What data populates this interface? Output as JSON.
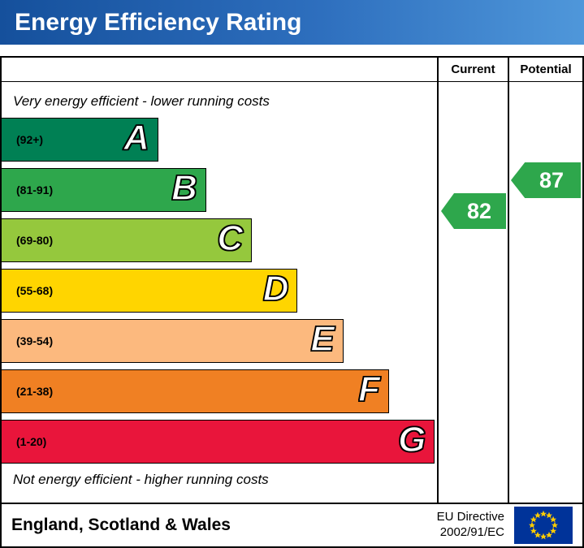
{
  "banner": {
    "title": "Energy Efficiency Rating"
  },
  "table": {
    "current_header": "Current",
    "potential_header": "Potential",
    "top_note": "Very energy efficient - lower running costs",
    "bottom_note": "Not energy efficient - higher running costs"
  },
  "bands": [
    {
      "letter": "A",
      "range": "(92+)",
      "color": "#008054",
      "width_pct": 36
    },
    {
      "letter": "B",
      "range": "(81-91)",
      "color": "#2ea74c",
      "width_pct": 47
    },
    {
      "letter": "C",
      "range": "(69-80)",
      "color": "#95c83d",
      "width_pct": 57.5
    },
    {
      "letter": "D",
      "range": "(55-68)",
      "color": "#ffd500",
      "width_pct": 68
    },
    {
      "letter": "E",
      "range": "(39-54)",
      "color": "#fcb97e",
      "width_pct": 78.5
    },
    {
      "letter": "F",
      "range": "(21-38)",
      "color": "#f08023",
      "width_pct": 89
    },
    {
      "letter": "G",
      "range": "(1-20)",
      "color": "#e9153b",
      "width_pct": 99.5
    }
  ],
  "ratings": {
    "current": {
      "value": "82",
      "band": "B",
      "color": "#2ea74c"
    },
    "potential": {
      "value": "87",
      "band": "B",
      "color": "#2ea74c"
    }
  },
  "footer": {
    "region": "England, Scotland & Wales",
    "directive": [
      "EU Directive",
      "2002/91/EC"
    ],
    "flag_blue": "#003399",
    "flag_star": "#ffcc00"
  },
  "chart_data": {
    "type": "bar",
    "title": "Energy Efficiency Rating",
    "categories": [
      "A (92+)",
      "B (81-91)",
      "C (69-80)",
      "D (55-68)",
      "E (39-54)",
      "F (21-38)",
      "G (1-20)"
    ],
    "values": [
      36,
      47,
      57.5,
      68,
      78.5,
      89,
      99.5
    ],
    "band_colors": [
      "#008054",
      "#2ea74c",
      "#95c83d",
      "#ffd500",
      "#fcb97e",
      "#f08023",
      "#e9153b"
    ],
    "current_rating": 82,
    "potential_rating": 87,
    "annotations": [
      "Very energy efficient - lower running costs",
      "Not energy efficient - higher running costs",
      "England, Scotland & Wales",
      "EU Directive 2002/91/EC"
    ],
    "legend_position": "none",
    "grid": false
  }
}
